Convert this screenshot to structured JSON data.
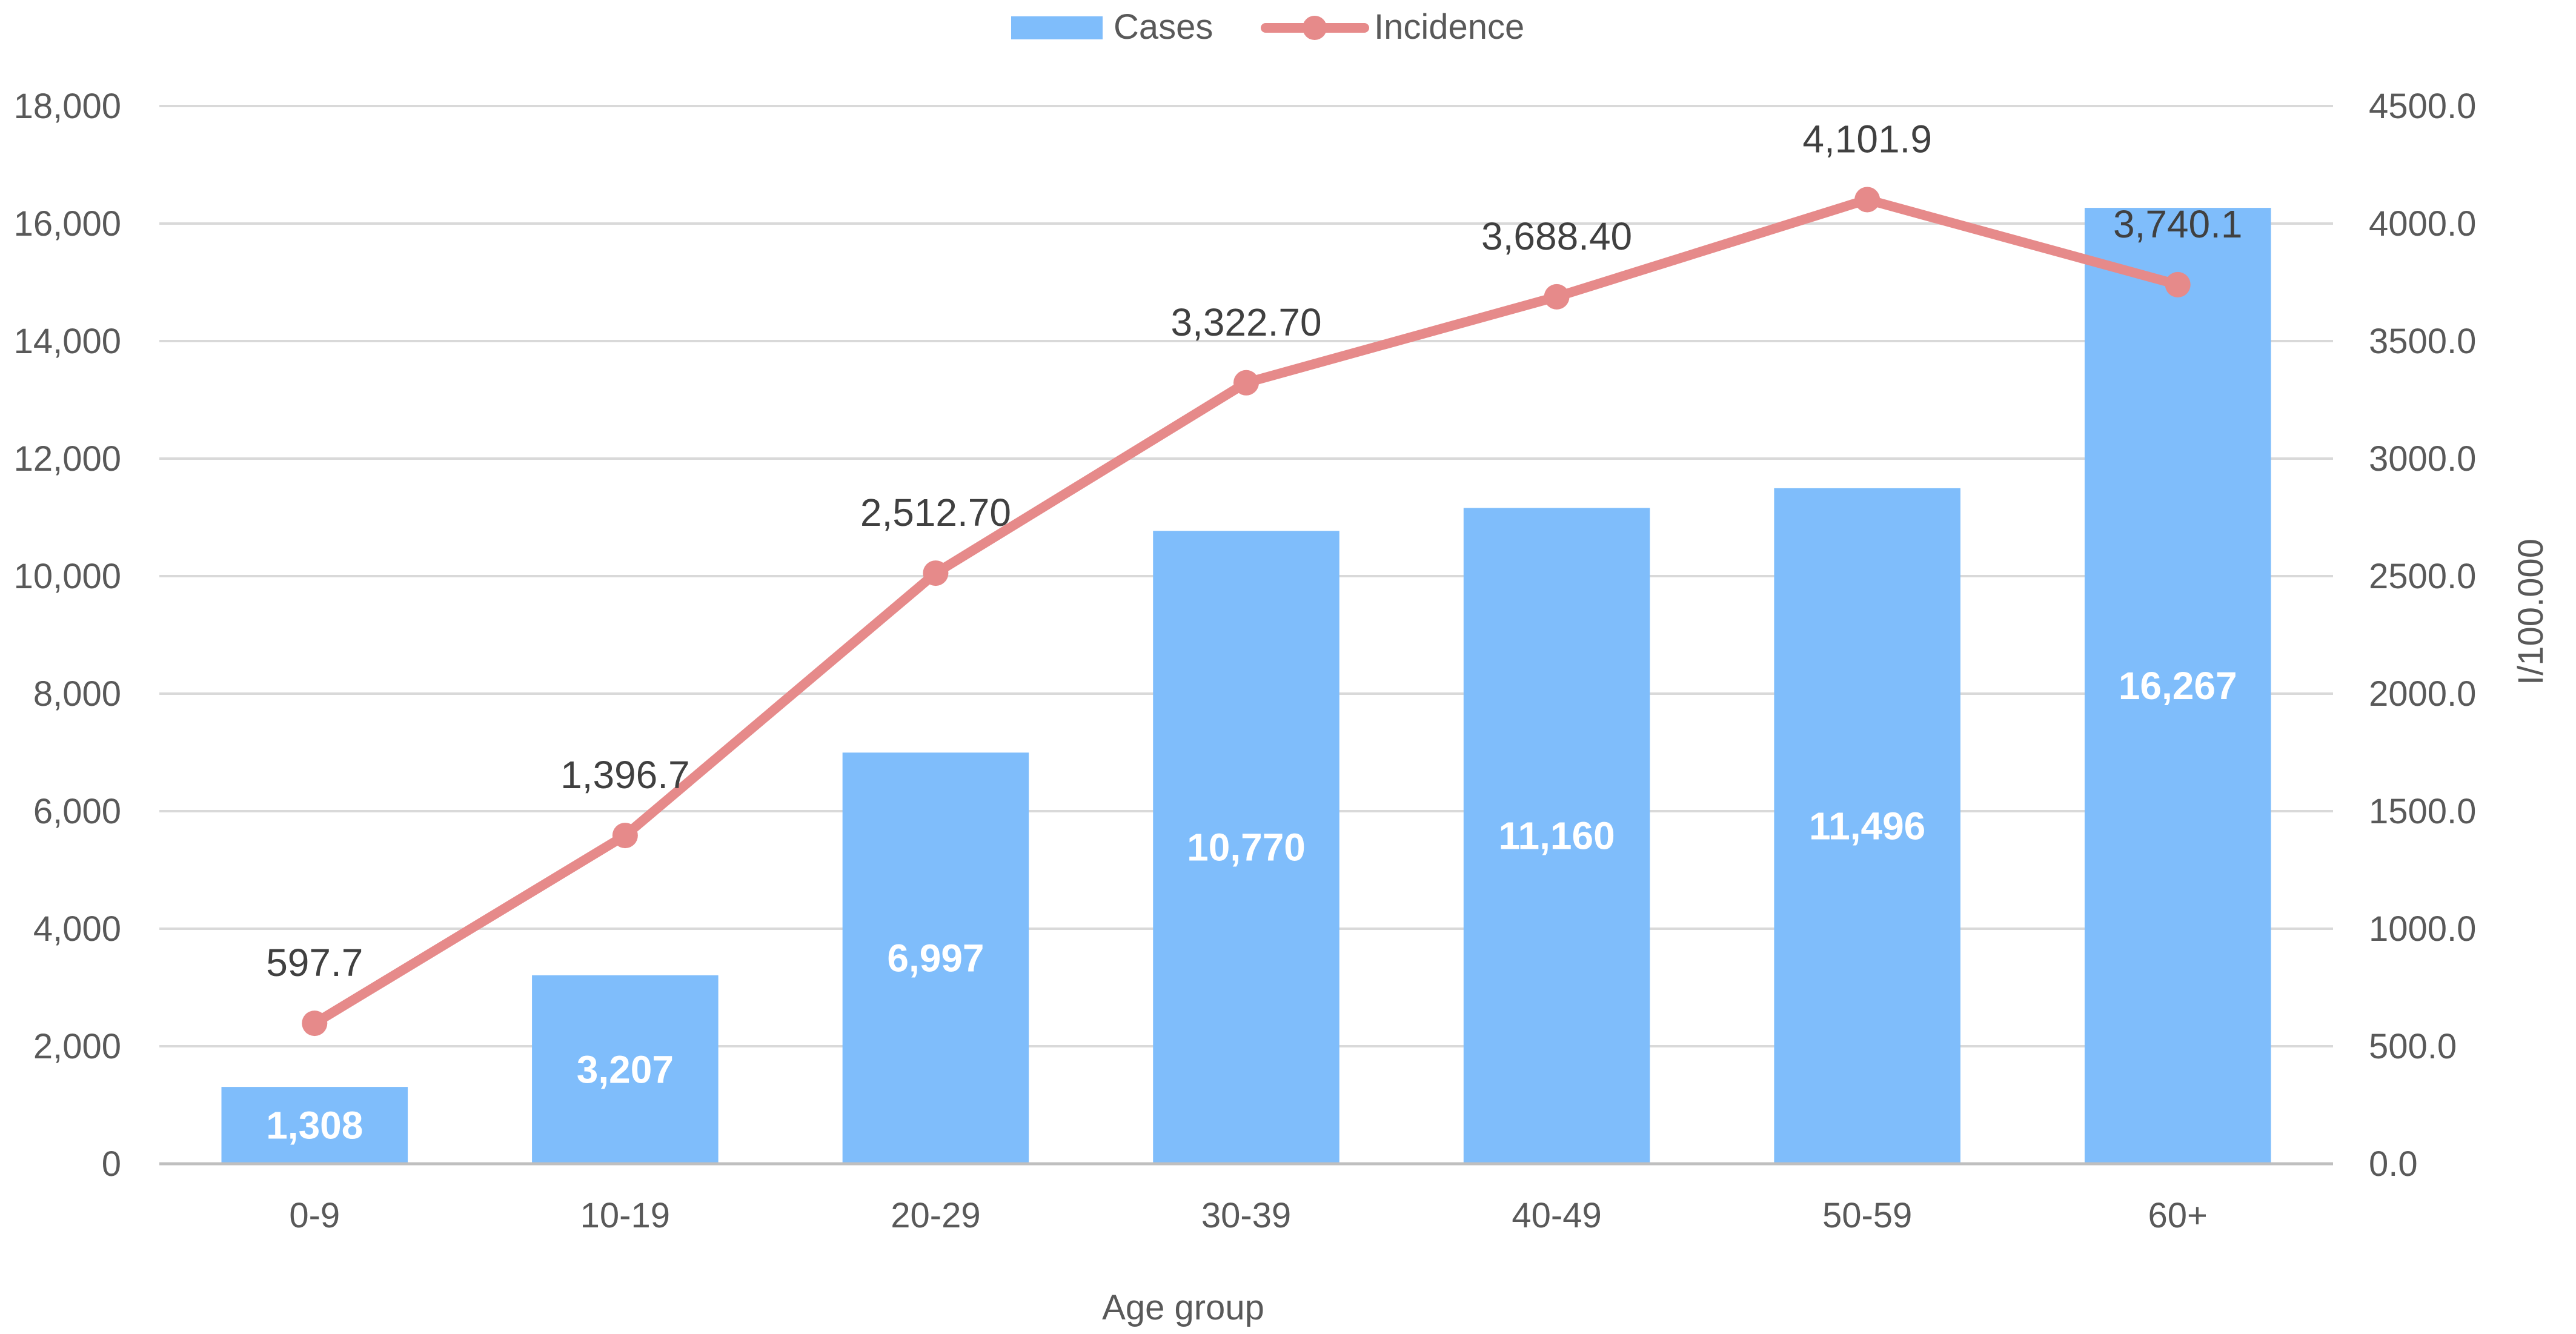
{
  "chart_data": {
    "type": "bar",
    "title": "",
    "categories": [
      "0-9",
      "10-19",
      "20-29",
      "30-39",
      "40-49",
      "50-59",
      "60+"
    ],
    "xlabel": "Age group",
    "ylabel": "",
    "ylabel_right": "I/100.000",
    "ylim": [
      0,
      18000
    ],
    "ylim_right": [
      0,
      4500
    ],
    "yticks": [
      "0",
      "2,000",
      "4,000",
      "6,000",
      "8,000",
      "10,000",
      "12,000",
      "14,000",
      "16,000",
      "18,000"
    ],
    "yticks_right": [
      "0.0",
      "500.0",
      "1000.0",
      "1500.0",
      "2000.0",
      "2500.0",
      "3000.0",
      "3500.0",
      "4000.0",
      "4500.0"
    ],
    "grid": true,
    "legend_position": "top-center",
    "series": [
      {
        "name": "Cases",
        "type": "bar",
        "axis": "left",
        "color": "#7fbdfb",
        "values": [
          1308,
          3207,
          6997,
          10770,
          11160,
          11496,
          16267
        ],
        "labels": [
          "1,308",
          "3,207",
          "6,997",
          "10,770",
          "11,160",
          "11,496",
          "16,267"
        ]
      },
      {
        "name": "Incidence",
        "type": "line",
        "axis": "right",
        "color": "#e68a8a",
        "values": [
          597.7,
          1396.7,
          2512.7,
          3322.7,
          3688.4,
          4101.9,
          3740.1
        ],
        "labels": [
          "597.7",
          "1,396.7",
          "2,512.70",
          "3,322.70",
          "3,688.40",
          "4,101.9",
          "3,740.1"
        ]
      }
    ]
  }
}
